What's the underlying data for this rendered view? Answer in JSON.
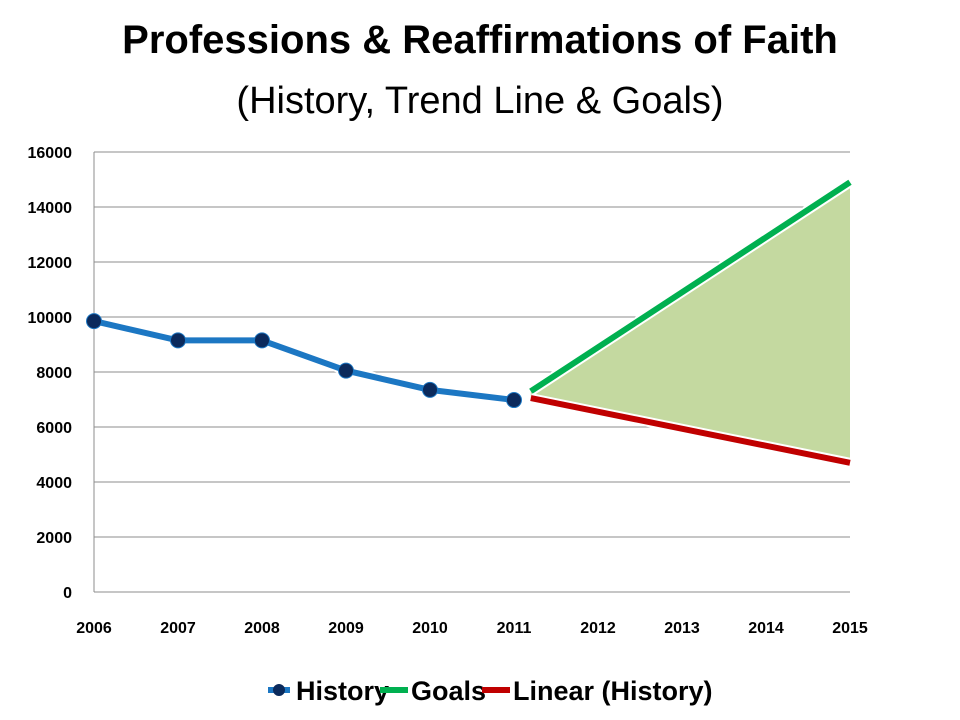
{
  "chart_data": {
    "type": "line",
    "title": "Professions & Reaffirmations of Faith",
    "subtitle": "(History, Trend Line & Goals)",
    "x_ticks": [
      "2006",
      "2007",
      "2008",
      "2009",
      "2010",
      "2011",
      "2012",
      "2013",
      "2014",
      "2015"
    ],
    "y_ticks": [
      "0",
      "2000",
      "4000",
      "6000",
      "8000",
      "10000",
      "12000",
      "14000",
      "16000"
    ],
    "ylim": [
      0,
      16000
    ],
    "xlim": [
      2006,
      2015
    ],
    "grid": true,
    "legend_position": "bottom",
    "series": [
      {
        "name": "History",
        "color": "#1c77c3",
        "marker_color": "#0b2a5c",
        "x": [
          2006,
          2007,
          2008,
          2009,
          2010,
          2011
        ],
        "y": [
          9850,
          9150,
          9150,
          8050,
          7350,
          6980
        ]
      },
      {
        "name": "Goals",
        "color": "#00b050",
        "x": [
          2011.2,
          2015
        ],
        "y": [
          7300,
          14900
        ]
      },
      {
        "name": "Linear (History)",
        "color": "#c00000",
        "x": [
          2011.2,
          2015
        ],
        "y": [
          7050,
          4700
        ]
      }
    ],
    "shaded_area": {
      "color": "#c4d9a0",
      "x": [
        2011.2,
        2015
      ],
      "upper": [
        7300,
        14900
      ],
      "lower": [
        7050,
        4700
      ]
    }
  }
}
